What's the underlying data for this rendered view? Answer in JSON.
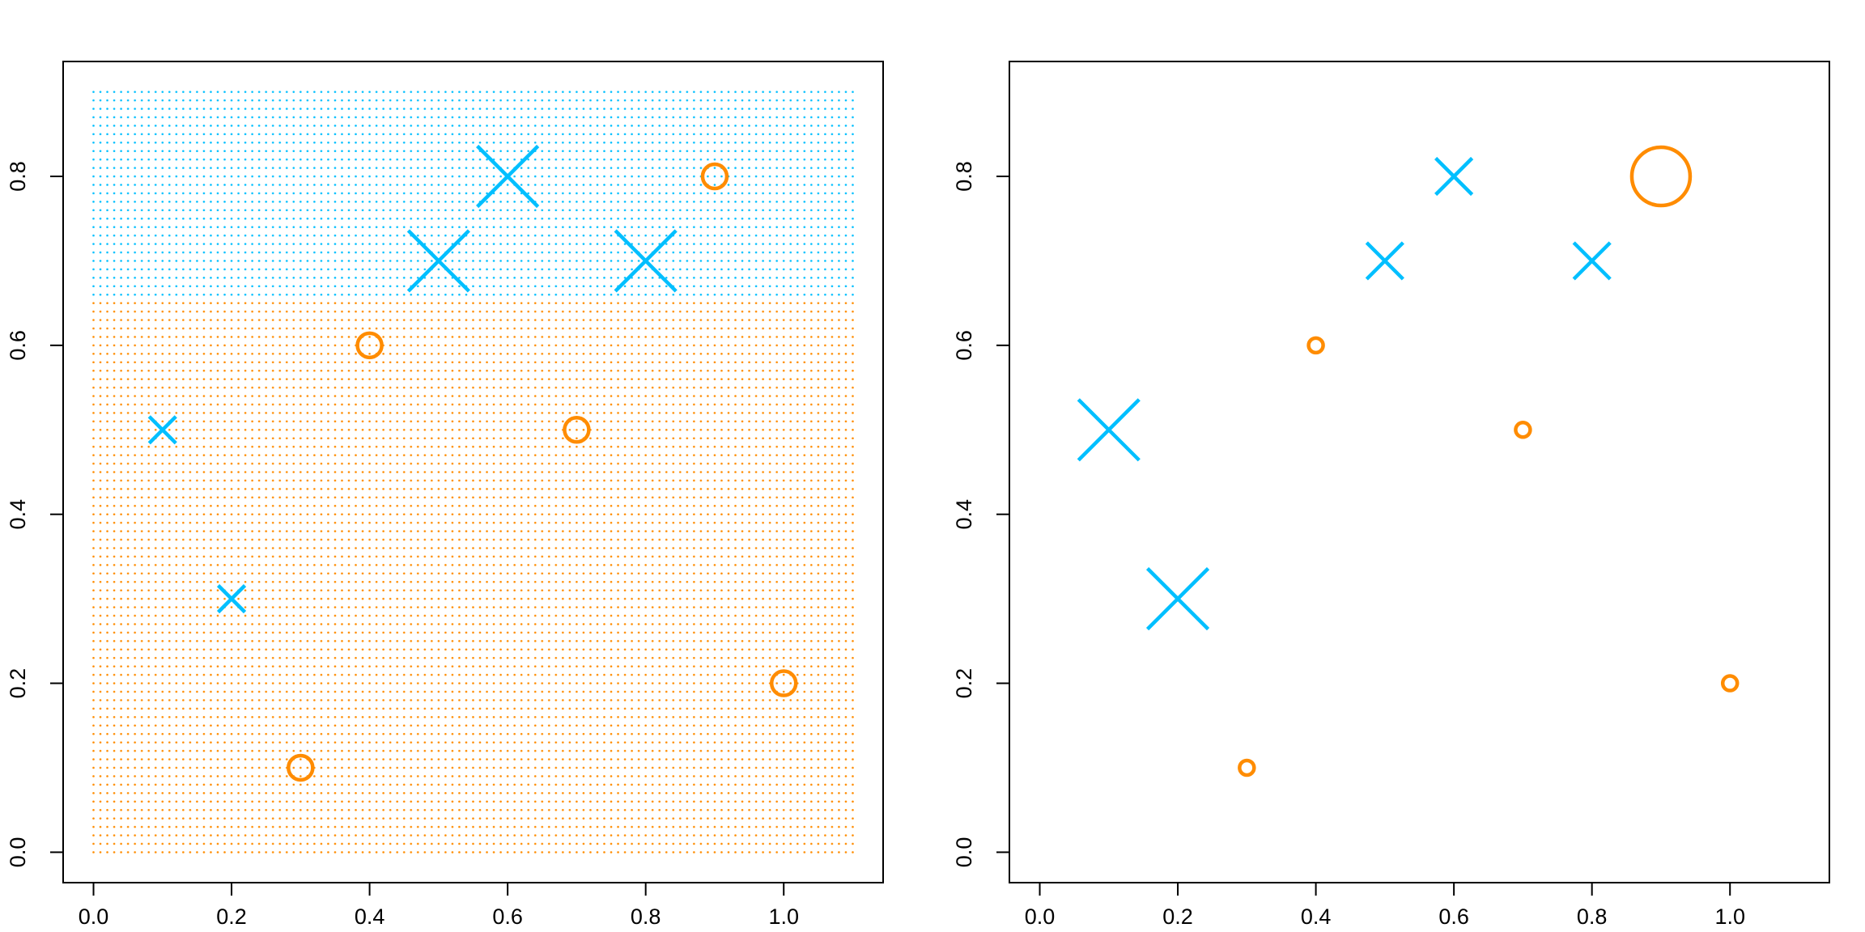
{
  "chart_data": [
    {
      "type": "scatter",
      "xlim": [
        -0.044,
        1.144
      ],
      "ylim": [
        -0.036,
        0.936
      ],
      "xticks": [
        {
          "value": 0,
          "label": "0.0"
        },
        0.2,
        0.4,
        0.6,
        0.8,
        {
          "value": 1,
          "label": "1.0"
        }
      ],
      "yticks": [
        {
          "value": 0,
          "label": "0.0"
        },
        0.2,
        0.4,
        0.6,
        0.8
      ],
      "regions": [
        {
          "color": "#00bfff",
          "xlim": [
            0,
            1.1
          ],
          "ylim": [
            0.66,
            0.9
          ],
          "step": 0.01
        },
        {
          "color": "#ff8c00",
          "xlim": [
            0,
            1.1
          ],
          "ylim": [
            0,
            0.65
          ],
          "step": 0.01
        }
      ],
      "series": [
        {
          "color": "#00bfff",
          "marker": "x",
          "x": [
            0.1,
            0.2,
            0.5,
            0.6,
            0.8
          ],
          "y": [
            0.5,
            0.3,
            0.7,
            0.8,
            0.7
          ],
          "sizes": [
            1.1,
            1.1,
            2.5,
            2.5,
            2.5
          ]
        },
        {
          "color": "#ff8c00",
          "marker": "o",
          "x": [
            0.3,
            0.4,
            0.7,
            0.9,
            1.0
          ],
          "y": [
            0.1,
            0.6,
            0.5,
            0.8,
            0.2
          ],
          "sizes": [
            1,
            1,
            1,
            1,
            1
          ]
        }
      ]
    },
    {
      "type": "scatter",
      "xlim": [
        -0.044,
        1.144
      ],
      "ylim": [
        -0.036,
        0.936
      ],
      "xticks": [
        {
          "value": 0,
          "label": "0.0"
        },
        0.2,
        0.4,
        0.6,
        0.8,
        {
          "value": 1,
          "label": "1.0"
        }
      ],
      "yticks": [
        {
          "value": 0,
          "label": "0.0"
        },
        0.2,
        0.4,
        0.6,
        0.8
      ],
      "series": [
        {
          "color": "#00bfff",
          "marker": "x",
          "x": [
            0.1,
            0.2,
            0.5,
            0.6,
            0.8
          ],
          "y": [
            0.5,
            0.3,
            0.7,
            0.8,
            0.7
          ],
          "sizes": [
            2.5,
            2.5,
            1.5,
            1.5,
            1.5
          ]
        },
        {
          "color": "#ff8c00",
          "marker": "o",
          "x": [
            0.3,
            0.4,
            0.7,
            0.9,
            1.0
          ],
          "y": [
            0.1,
            0.6,
            0.5,
            0.8,
            0.2
          ],
          "sizes": [
            0.6,
            0.6,
            0.6,
            2.4,
            0.6
          ]
        }
      ]
    }
  ]
}
